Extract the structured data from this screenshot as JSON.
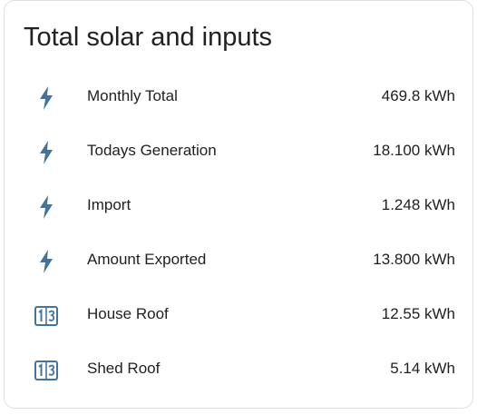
{
  "card": {
    "title": "Total solar and inputs"
  },
  "theme": {
    "icon_color": "#44739e"
  },
  "entities": [
    {
      "icon": "flash-icon",
      "label": "Monthly Total",
      "value": "469.8 kWh"
    },
    {
      "icon": "flash-icon",
      "label": "Todays Generation",
      "value": "18.100 kWh"
    },
    {
      "icon": "flash-icon",
      "label": "Import",
      "value": "1.248 kWh"
    },
    {
      "icon": "flash-icon",
      "label": "Amount Exported",
      "value": "13.800 kWh"
    },
    {
      "icon": "counter-icon",
      "label": "House Roof",
      "value": "12.55 kWh"
    },
    {
      "icon": "counter-icon",
      "label": "Shed Roof",
      "value": "5.14 kWh"
    }
  ]
}
